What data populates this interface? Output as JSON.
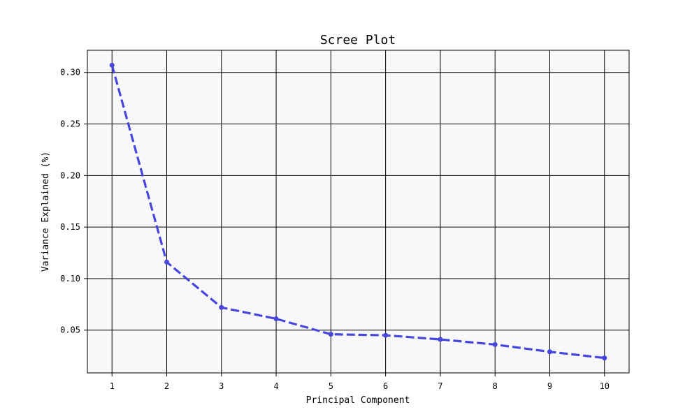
{
  "chart_data": {
    "type": "line",
    "title": "Scree Plot",
    "xlabel": "Principal Component",
    "ylabel": "Variance Explained (%)",
    "x": [
      1,
      2,
      3,
      4,
      5,
      6,
      7,
      8,
      9,
      10
    ],
    "series": [
      {
        "values": [
          0.307,
          0.116,
          0.072,
          0.061,
          0.046,
          0.045,
          0.041,
          0.036,
          0.029,
          0.023
        ],
        "color": "#4646dc",
        "line_style": "dashed",
        "marker": "circle"
      }
    ],
    "xlim": [
      0.55,
      10.45
    ],
    "ylim": [
      0.0085,
      0.3215
    ],
    "xticks": [
      "1",
      "2",
      "3",
      "4",
      "5",
      "6",
      "7",
      "8",
      "9",
      "10"
    ],
    "xtick_values": [
      1,
      2,
      3,
      4,
      5,
      6,
      7,
      8,
      9,
      10
    ],
    "yticks": [
      "0.05",
      "0.10",
      "0.15",
      "0.20",
      "0.25",
      "0.30"
    ],
    "ytick_values": [
      0.05,
      0.1,
      0.15,
      0.2,
      0.25,
      0.3
    ],
    "grid": true,
    "grid_color": "#000000",
    "plot_background": "#f8f8f8",
    "legend": "none"
  }
}
